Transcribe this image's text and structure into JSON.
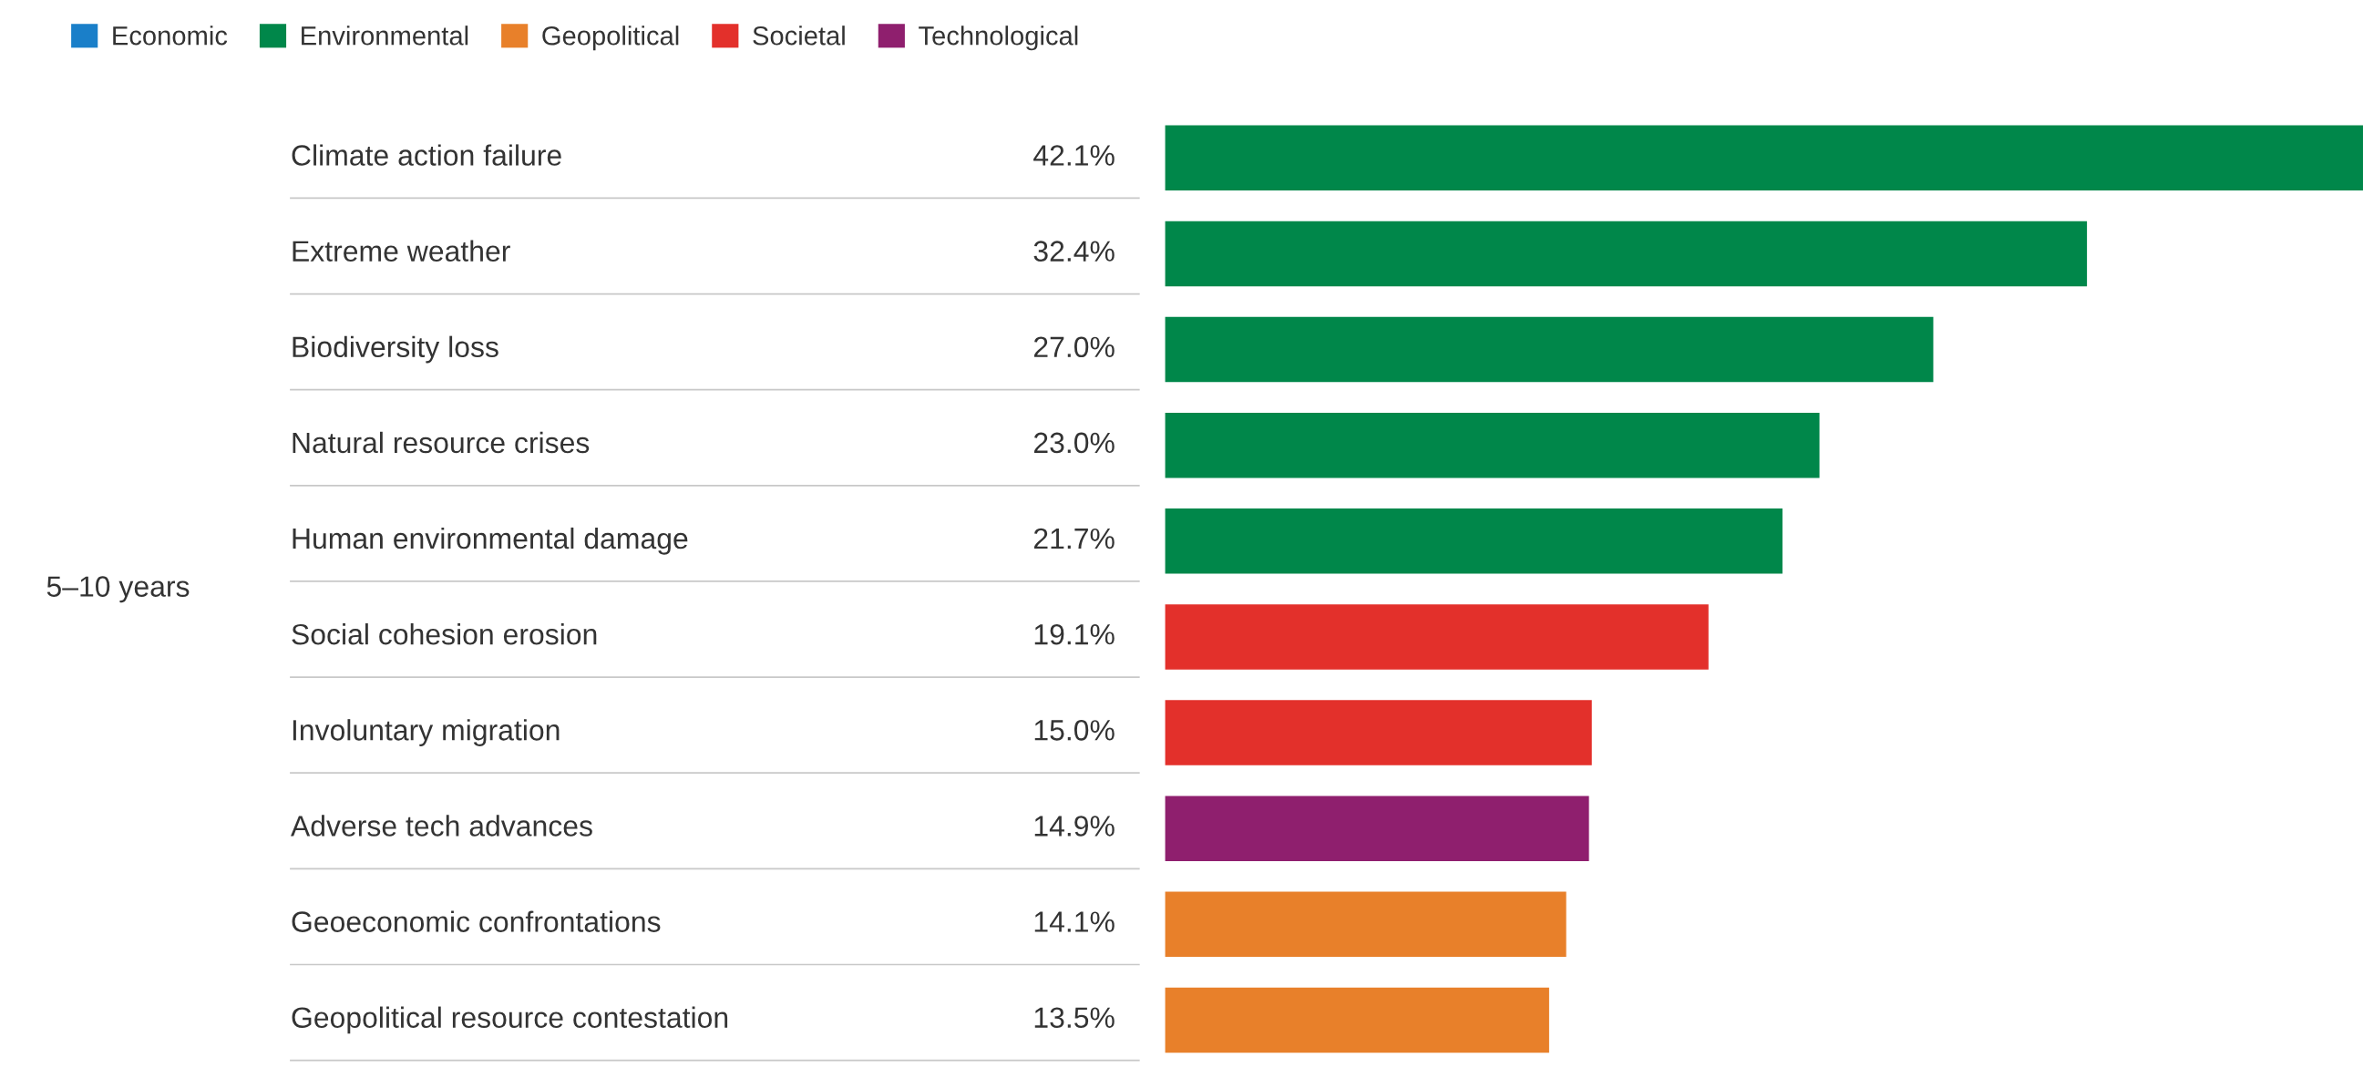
{
  "chart_data": {
    "type": "bar",
    "orientation": "horizontal",
    "ylabel": "5–10 years",
    "categories": [
      "Climate action failure",
      "Extreme weather",
      "Biodiversity loss",
      "Natural resource crises",
      "Human environmental damage",
      "Social cohesion erosion",
      "Involuntary migration",
      "Adverse tech advances",
      "Geoeconomic confrontations",
      "Geopolitical resource contestation"
    ],
    "series": [
      {
        "name": "Economic",
        "color": "#1a7fc9",
        "values": [
          null,
          null,
          null,
          null,
          null,
          null,
          null,
          null,
          null,
          null
        ],
        "value_labels": [
          null,
          null,
          null,
          null,
          null,
          null,
          null,
          null,
          null,
          null
        ]
      },
      {
        "name": "Environmental",
        "color": "#00874a",
        "values": [
          42.1,
          32.4,
          27.0,
          23.0,
          21.7,
          null,
          null,
          null,
          null,
          null
        ],
        "value_labels": [
          "42.1%",
          "32.4%",
          "27.0%",
          "23.0%",
          "21.7%",
          null,
          null,
          null,
          null,
          null
        ]
      },
      {
        "name": "Geopolitical",
        "color": "#e8802a",
        "values": [
          null,
          null,
          null,
          null,
          null,
          null,
          null,
          null,
          14.1,
          13.5
        ],
        "value_labels": [
          null,
          null,
          null,
          null,
          null,
          null,
          null,
          null,
          "14.1%",
          "13.5%"
        ]
      },
      {
        "name": "Societal",
        "color": "#e3302b",
        "values": [
          null,
          null,
          null,
          null,
          null,
          19.1,
          15.0,
          null,
          null,
          null
        ],
        "value_labels": [
          null,
          null,
          null,
          null,
          null,
          "19.1%",
          "15.0%",
          null,
          null,
          null
        ]
      },
      {
        "name": "Technological",
        "color": "#8f1f6e",
        "values": [
          null,
          null,
          null,
          null,
          null,
          null,
          null,
          14.9,
          null,
          null
        ],
        "value_labels": [
          null,
          null,
          null,
          null,
          null,
          null,
          null,
          "14.9%",
          null,
          null
        ]
      }
    ],
    "legend": "top left"
  }
}
